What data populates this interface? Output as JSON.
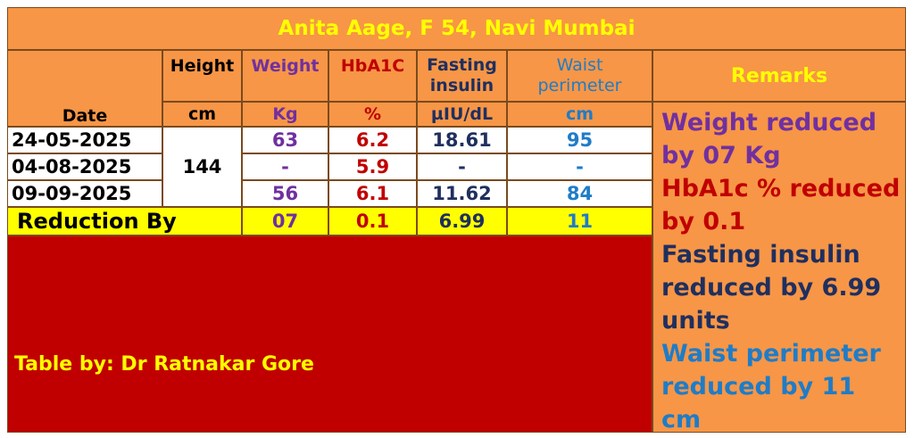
{
  "title": "Anita Aage, F 54, Navi Mumbai",
  "headers": {
    "date": "Date",
    "height": "Height",
    "weight": "Weight",
    "hba1c": "HbA1C",
    "fasting_insulin": "Fasting insulin",
    "waist_perimeter": "Waist perimeter",
    "remarks": "Remarks"
  },
  "units": {
    "height": "cm",
    "weight": "Kg",
    "hba1c": "%",
    "fasting_insulin": "µIU/dL",
    "waist_perimeter": "cm"
  },
  "height_value": "144",
  "rows": [
    {
      "date": "24-05-2025",
      "weight": "63",
      "hba1c": "6.2",
      "fasting_insulin": "18.61",
      "waist": "95"
    },
    {
      "date": "04-08-2025",
      "weight": "-",
      "hba1c": "5.9",
      "fasting_insulin": "-",
      "waist": "-"
    },
    {
      "date": "09-09-2025",
      "weight": "56",
      "hba1c": "6.1",
      "fasting_insulin": "11.62",
      "waist": "84"
    }
  ],
  "reduction": {
    "label": "Reduction By",
    "weight": "07",
    "hba1c": "0.1",
    "fasting_insulin": "6.99",
    "waist": "11"
  },
  "credit": "Table by: Dr Ratnakar Gore",
  "remarks": {
    "weight": "Weight reduced by 07 Kg",
    "hba1c": "HbA1c % reduced by 0.1",
    "insulin": "Fasting insulin reduced by 6.99 units",
    "waist": "Waist perimeter reduced by 11 cm"
  },
  "colors": {
    "background": "#F79646",
    "title_text": "#FFFF00",
    "weight": "#7030A0",
    "hba1c": "#C00000",
    "insulin": "#1F2F5F",
    "waist": "#1F7CC8",
    "reduction_row": "#FFFF00",
    "credit_panel": "#C00000"
  }
}
